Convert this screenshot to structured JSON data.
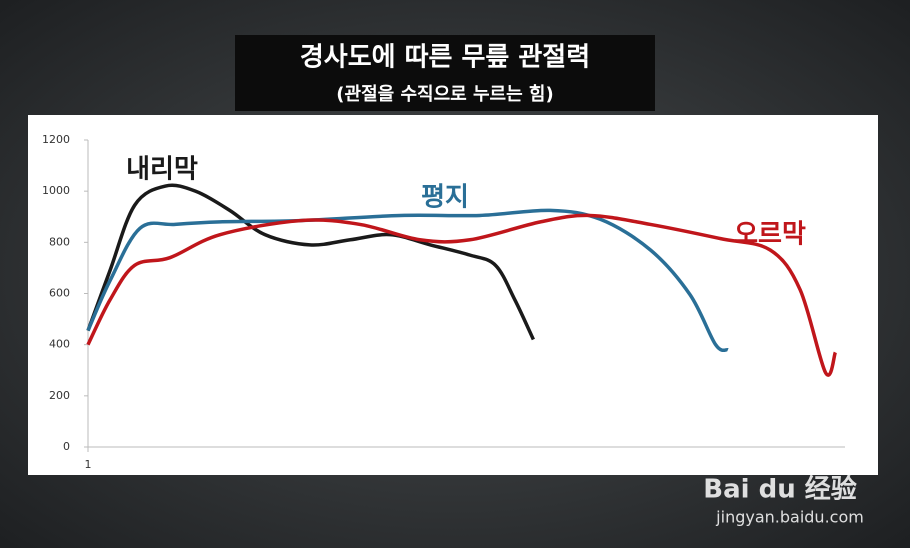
{
  "chart_data": {
    "type": "line",
    "title": "경사도에 따른 무릎 관절력",
    "subtitle": "(관절을 수직으로 누르는 힘)",
    "xlim": [
      1,
      9.6
    ],
    "xticks": [
      1
    ],
    "ylim": [
      0,
      1200
    ],
    "yticks": [
      0,
      200,
      400,
      600,
      800,
      1000,
      1200
    ],
    "grid": false,
    "series": [
      {
        "name": "내리막",
        "color": "#1a1a1a",
        "x": [
          1,
          1.25,
          1.53,
          1.88,
          2.22,
          2.61,
          3.01,
          3.52,
          3.98,
          4.43,
          4.89,
          5.34,
          5.63,
          5.85,
          6.06
        ],
        "values": [
          455,
          690,
          945,
          1020,
          1000,
          925,
          830,
          790,
          810,
          830,
          790,
          750,
          710,
          575,
          420
        ]
      },
      {
        "name": "평지",
        "color": "#2a6f97",
        "x": [
          1,
          1.25,
          1.59,
          1.99,
          2.5,
          3.41,
          4.55,
          5.45,
          6.25,
          6.82,
          7.39,
          7.84,
          8.13,
          8.27
        ],
        "values": [
          455,
          650,
          855,
          870,
          880,
          885,
          905,
          905,
          925,
          890,
          770,
          595,
          400,
          380
        ]
      },
      {
        "name": "오르막",
        "color": "#c0161b",
        "x": [
          1,
          1.25,
          1.53,
          1.93,
          2.5,
          3.41,
          4.09,
          4.77,
          5.34,
          6.14,
          6.7,
          7.39,
          8.18,
          8.75,
          9.09,
          9.38,
          9.49
        ],
        "values": [
          400,
          575,
          710,
          740,
          830,
          885,
          870,
          810,
          810,
          880,
          905,
          870,
          815,
          770,
          615,
          290,
          370
        ]
      }
    ],
    "watermark": "Bai du 经验",
    "watermark_url": "jingyan.baidu.com"
  }
}
